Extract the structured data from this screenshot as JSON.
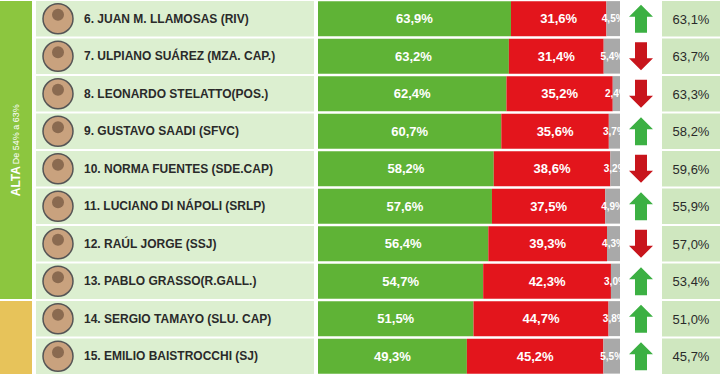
{
  "chart_data": {
    "type": "bar",
    "orientation": "horizontal",
    "stacked": true,
    "data_labels": true,
    "tick_labels": "y",
    "xlim": [
      0,
      100
    ],
    "categories": [
      "6. JUAN M. LLAMOSAS (RIV)",
      "7. ULPIANO SUÁREZ (MZA. CAP.)",
      "8. LEONARDO STELATTO(POS.)",
      "9. GUSTAVO SAADI (SFVC)",
      "10. NORMA FUENTES (SDE.CAP)",
      "11. LUCIANO DI NÁPOLI (SRLP)",
      "12. RAÚL JORGE (SSJ)",
      "13. PABLO GRASSO(R.GALL.)",
      "14. SERGIO TAMAYO (SLU. CAP)",
      "15. EMILIO BAISTROCCHI (SJ)"
    ],
    "series": [
      {
        "color": "#5fb336",
        "values": [
          63.9,
          63.2,
          62.4,
          60.7,
          58.2,
          57.6,
          56.4,
          54.7,
          51.5,
          49.3
        ],
        "value_labels": [
          "63,9%",
          "63,2%",
          "62,4%",
          "60,7%",
          "58,2%",
          "57,6%",
          "56,4%",
          "54,7%",
          "51,5%",
          "49,3%"
        ]
      },
      {
        "color": "#e3151c",
        "values": [
          31.6,
          31.4,
          35.2,
          35.6,
          38.6,
          37.5,
          39.3,
          42.3,
          44.7,
          45.2
        ],
        "value_labels": [
          "31,6%",
          "31,4%",
          "35,2%",
          "35,6%",
          "38,6%",
          "37,5%",
          "39,3%",
          "42,3%",
          "44,7%",
          "45,2%"
        ]
      },
      {
        "color": "#a9a9a9",
        "values": [
          4.5,
          5.4,
          2.4,
          3.7,
          3.2,
          4.9,
          4.3,
          3.0,
          3.8,
          5.5
        ],
        "value_labels": [
          "4,5%",
          "5,4%",
          "2,4%",
          "3,7%",
          "3,2%",
          "4,9%",
          "4,3%",
          "3,0%",
          "3,8%",
          "5,5%"
        ]
      }
    ],
    "previous": {
      "values": [
        63.1,
        63.7,
        63.3,
        58.2,
        59.6,
        55.9,
        57.0,
        53.4,
        51.0,
        45.7
      ],
      "value_labels": [
        "63,1%",
        "63,7%",
        "63,3%",
        "58,2%",
        "59,6%",
        "55,9%",
        "57,0%",
        "53,4%",
        "51,0%",
        "45,7%"
      ]
    },
    "groups": [
      {
        "label": "ALTA",
        "sublabel": "De 54% a 63%",
        "color": "#8cc63f",
        "count": 8
      },
      {
        "color": "#e7c35a",
        "count": 2
      }
    ]
  }
}
